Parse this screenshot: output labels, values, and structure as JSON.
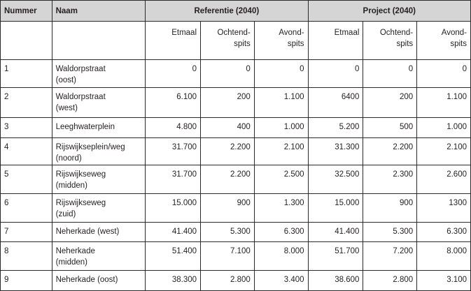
{
  "headers": {
    "nummer": "Nummer",
    "naam": "Naam",
    "referentie": "Referentie (2040)",
    "project": "Project (2040)"
  },
  "subheaders": {
    "ref": [
      "Etmaal",
      "Ochtend-\nspits",
      "Avond-\nspits"
    ],
    "proj": [
      "Etmaal",
      "Ochtend-\nspits",
      "Avond-\nspits"
    ]
  },
  "rows": [
    {
      "nummer": "1",
      "naam": "Waldorpstraat\n(oost)",
      "ref": [
        "0",
        "0",
        "0"
      ],
      "proj": [
        "0",
        "0",
        "0"
      ]
    },
    {
      "nummer": "2",
      "naam": "Waldorpstraat\n(west)",
      "ref": [
        "6.100",
        "200",
        "1.100"
      ],
      "proj": [
        "6400",
        "200",
        "1.100"
      ]
    },
    {
      "nummer": "3",
      "naam": "Leeghwaterplein",
      "ref": [
        "4.800",
        "400",
        "1.000"
      ],
      "proj": [
        "5.200",
        "500",
        "1.000"
      ]
    },
    {
      "nummer": "4",
      "naam": "Rijswijkseplein/weg\n(noord)",
      "ref": [
        "31.700",
        "2.200",
        "2.100"
      ],
      "proj": [
        "31.300",
        "2.200",
        "2.100"
      ]
    },
    {
      "nummer": "5",
      "naam": "Rijswijkseweg\n(midden)",
      "ref": [
        "31.700",
        "2.200",
        "2.500"
      ],
      "proj": [
        "32.500",
        "2.300",
        "2.600"
      ]
    },
    {
      "nummer": "6",
      "naam": "Rijswijkseweg\n(zuid)",
      "ref": [
        "15.000",
        "900",
        "1.300"
      ],
      "proj": [
        "15.000",
        "900",
        "1300"
      ]
    },
    {
      "nummer": "7",
      "naam": "Neherkade (west)",
      "ref": [
        "41.400",
        "5.300",
        "6.300"
      ],
      "proj": [
        "41.400",
        "5.300",
        "6.300"
      ]
    },
    {
      "nummer": "8",
      "naam": "Neherkade\n(midden)",
      "ref": [
        "51.400",
        "7.100",
        "8.000"
      ],
      "proj": [
        "51.700",
        "7.200",
        "8.000"
      ]
    },
    {
      "nummer": "9",
      "naam": "Neherkade (oost)",
      "ref": [
        "38.300",
        "2.800",
        "3.400"
      ],
      "proj": [
        "38.600",
        "2.800",
        "3.100"
      ]
    }
  ]
}
